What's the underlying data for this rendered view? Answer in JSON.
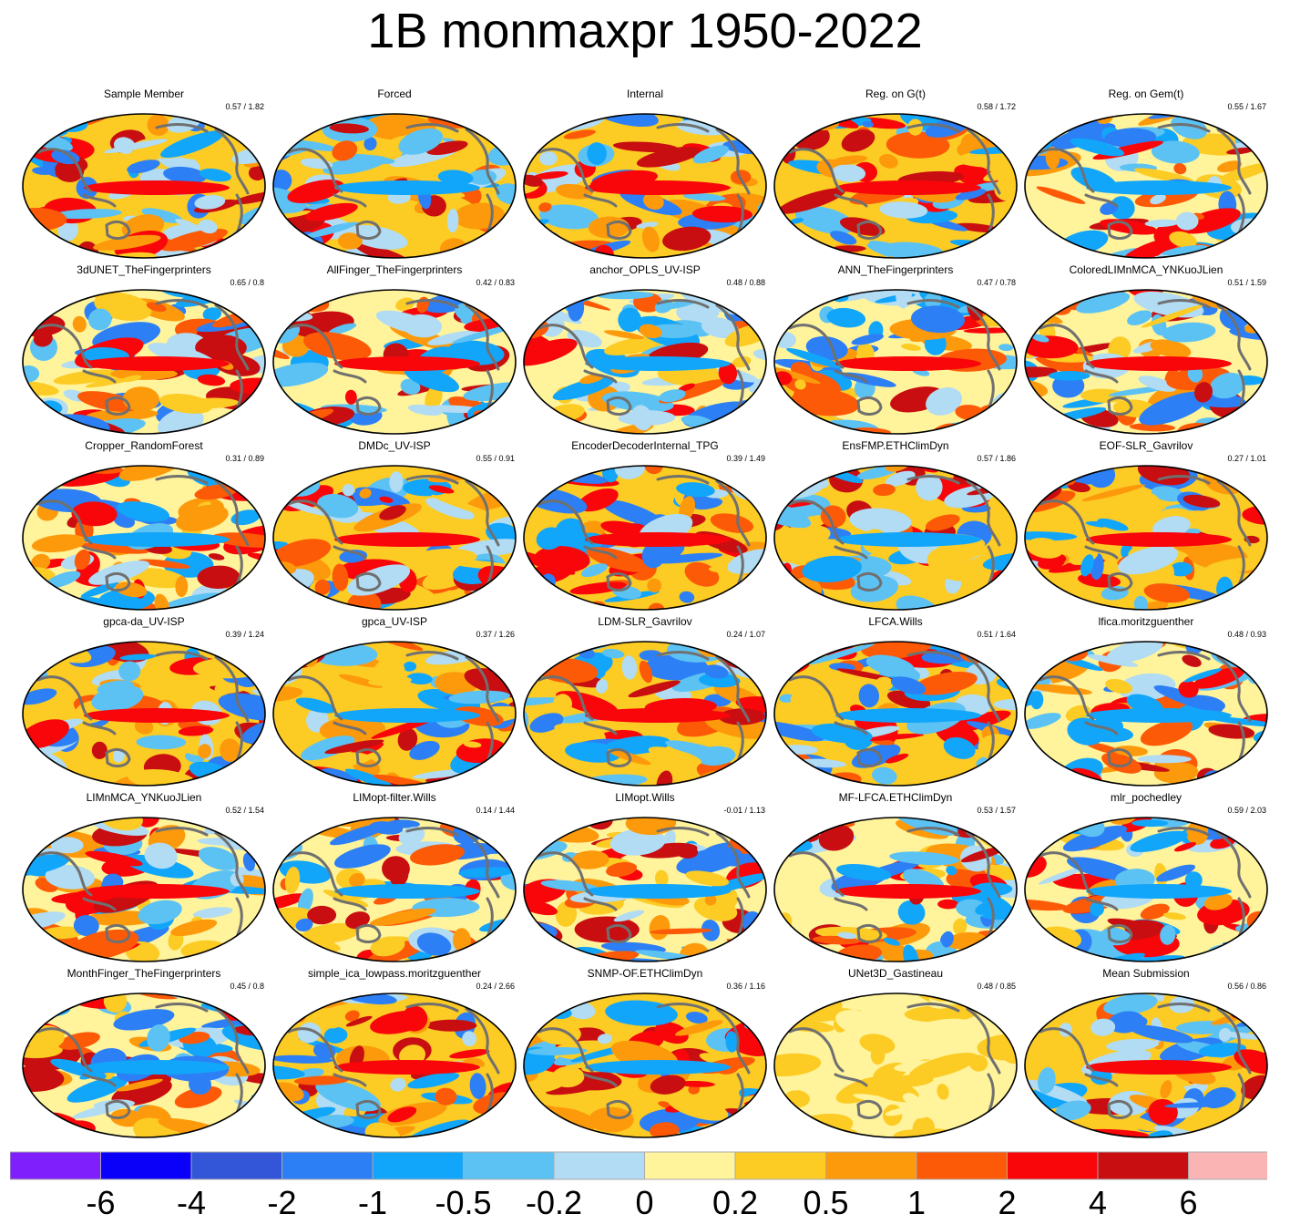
{
  "chart_data": {
    "type": "heatmap",
    "title": "1B monmaxpr 1950-2022",
    "projection": "global ellipse (Robinson-like), Pacific-centered",
    "layout": {
      "rows": 6,
      "columns": 5
    },
    "panels": [
      {
        "title": "Sample Member",
        "stats": "0.57 / 1.82"
      },
      {
        "title": "Forced",
        "stats": ""
      },
      {
        "title": "Internal",
        "stats": ""
      },
      {
        "title": "Reg. on G(t)",
        "stats": "0.58 / 1.72"
      },
      {
        "title": "Reg. on Gem(t)",
        "stats": "0.55 / 1.67"
      },
      {
        "title": "3dUNET_TheFingerprinters",
        "stats": "0.65 / 0.8"
      },
      {
        "title": "AllFinger_TheFingerprinters",
        "stats": "0.42 / 0.83"
      },
      {
        "title": "anchor_OPLS_UV-ISP",
        "stats": "0.48 / 0.88"
      },
      {
        "title": "ANN_TheFingerprinters",
        "stats": "0.47 / 0.78"
      },
      {
        "title": "ColoredLIMnMCA_YNKuoJLien",
        "stats": "0.51 / 1.59"
      },
      {
        "title": "Cropper_RandomForest",
        "stats": "0.31 / 0.89"
      },
      {
        "title": "DMDc_UV-ISP",
        "stats": "0.55 / 0.91"
      },
      {
        "title": "EncoderDecoderInternal_TPG",
        "stats": "0.39 / 1.49"
      },
      {
        "title": "EnsFMP.ETHClimDyn",
        "stats": "0.57 / 1.86"
      },
      {
        "title": "EOF-SLR_Gavrilov",
        "stats": "0.27 / 1.01"
      },
      {
        "title": "gpca-da_UV-ISP",
        "stats": "0.39 / 1.24"
      },
      {
        "title": "gpca_UV-ISP",
        "stats": "0.37 / 1.26"
      },
      {
        "title": "LDM-SLR_Gavrilov",
        "stats": "0.24 / 1.07"
      },
      {
        "title": "LFCA.Wills",
        "stats": "0.51 / 1.64"
      },
      {
        "title": "lfica.moritzguenther",
        "stats": "0.48 / 0.93"
      },
      {
        "title": "LIMnMCA_YNKuoJLien",
        "stats": "0.52 / 1.54"
      },
      {
        "title": "LIMopt-filter.Wills",
        "stats": "0.14 / 1.44"
      },
      {
        "title": "LIMopt.Wills",
        "stats": "-0.01 / 1.13"
      },
      {
        "title": "MF-LFCA.ETHClimDyn",
        "stats": "0.53 / 1.57"
      },
      {
        "title": "mlr_pochedley",
        "stats": "0.59 / 2.03"
      },
      {
        "title": "MonthFinger_TheFingerprinters",
        "stats": "0.45 / 0.8"
      },
      {
        "title": "simple_ica_lowpass.moritzguenther",
        "stats": "0.24 / 2.66"
      },
      {
        "title": "SNMP-OF.ETHClimDyn",
        "stats": "0.36 / 1.16"
      },
      {
        "title": "UNet3D_Gastineau",
        "stats": "0.48 / 0.85"
      },
      {
        "title": "Mean Submission",
        "stats": "0.56 / 0.86"
      }
    ],
    "colorbar": {
      "levels": [
        "-6",
        "-4",
        "-2",
        "-1",
        "-0.5",
        "-0.2",
        "0",
        "0.2",
        "0.5",
        "1",
        "2",
        "4",
        "6"
      ],
      "colors": [
        "#7f1ffc",
        "#0a00fa",
        "#3356d9",
        "#2c7ff5",
        "#12a6fb",
        "#5cc2f4",
        "#b1dcf3",
        "#fff39b",
        "#fccb24",
        "#fd9a0b",
        "#fc5a07",
        "#f8060a",
        "#c80e10",
        "#fbb4b4"
      ]
    },
    "coastline_color": "#707070"
  }
}
